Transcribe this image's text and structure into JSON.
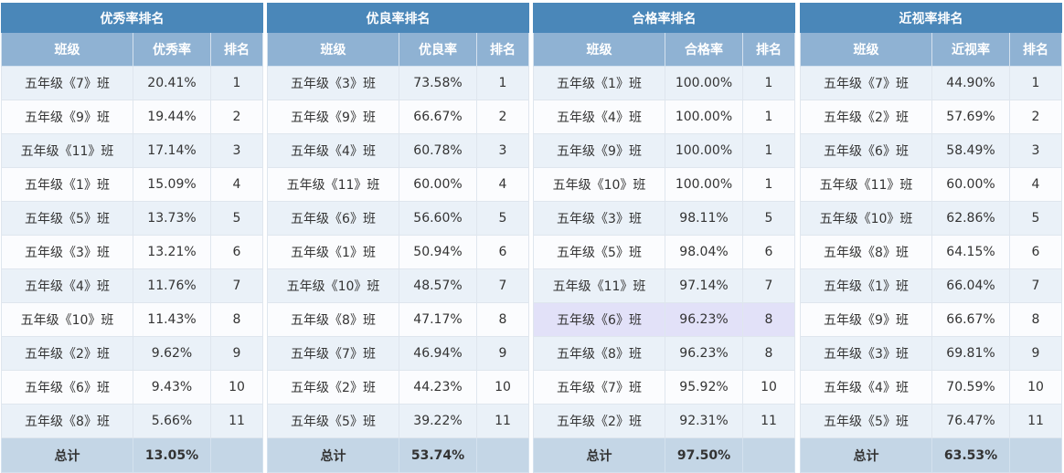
{
  "tables": [
    {
      "title": "优秀率排名",
      "headers": [
        "班级",
        "优秀率",
        "排名"
      ],
      "rows": [
        {
          "cls": "五年级《7》班",
          "rate": "20.41%",
          "rank": "1"
        },
        {
          "cls": "五年级《9》班",
          "rate": "19.44%",
          "rank": "2"
        },
        {
          "cls": "五年级《11》班",
          "rate": "17.14%",
          "rank": "3"
        },
        {
          "cls": "五年级《1》班",
          "rate": "15.09%",
          "rank": "4"
        },
        {
          "cls": "五年级《5》班",
          "rate": "13.73%",
          "rank": "5"
        },
        {
          "cls": "五年级《3》班",
          "rate": "13.21%",
          "rank": "6"
        },
        {
          "cls": "五年级《4》班",
          "rate": "11.76%",
          "rank": "7"
        },
        {
          "cls": "五年级《10》班",
          "rate": "11.43%",
          "rank": "8"
        },
        {
          "cls": "五年级《2》班",
          "rate": "9.62%",
          "rank": "9"
        },
        {
          "cls": "五年级《6》班",
          "rate": "9.43%",
          "rank": "10"
        },
        {
          "cls": "五年级《8》班",
          "rate": "5.66%",
          "rank": "11"
        }
      ],
      "footer": {
        "label": "总计",
        "value": "13.05%"
      }
    },
    {
      "title": "优良率排名",
      "headers": [
        "班级",
        "优良率",
        "排名"
      ],
      "rows": [
        {
          "cls": "五年级《3》班",
          "rate": "73.58%",
          "rank": "1"
        },
        {
          "cls": "五年级《9》班",
          "rate": "66.67%",
          "rank": "2"
        },
        {
          "cls": "五年级《4》班",
          "rate": "60.78%",
          "rank": "3"
        },
        {
          "cls": "五年级《11》班",
          "rate": "60.00%",
          "rank": "4"
        },
        {
          "cls": "五年级《6》班",
          "rate": "56.60%",
          "rank": "5"
        },
        {
          "cls": "五年级《1》班",
          "rate": "50.94%",
          "rank": "6"
        },
        {
          "cls": "五年级《10》班",
          "rate": "48.57%",
          "rank": "7"
        },
        {
          "cls": "五年级《8》班",
          "rate": "47.17%",
          "rank": "8"
        },
        {
          "cls": "五年级《7》班",
          "rate": "46.94%",
          "rank": "9"
        },
        {
          "cls": "五年级《2》班",
          "rate": "44.23%",
          "rank": "10"
        },
        {
          "cls": "五年级《5》班",
          "rate": "39.22%",
          "rank": "11"
        }
      ],
      "footer": {
        "label": "总计",
        "value": "53.74%"
      }
    },
    {
      "title": "合格率排名",
      "headers": [
        "班级",
        "合格率",
        "排名"
      ],
      "rows": [
        {
          "cls": "五年级《1》班",
          "rate": "100.00%",
          "rank": "1"
        },
        {
          "cls": "五年级《4》班",
          "rate": "100.00%",
          "rank": "1"
        },
        {
          "cls": "五年级《9》班",
          "rate": "100.00%",
          "rank": "1"
        },
        {
          "cls": "五年级《10》班",
          "rate": "100.00%",
          "rank": "1"
        },
        {
          "cls": "五年级《3》班",
          "rate": "98.11%",
          "rank": "5"
        },
        {
          "cls": "五年级《5》班",
          "rate": "98.04%",
          "rank": "6"
        },
        {
          "cls": "五年级《11》班",
          "rate": "97.14%",
          "rank": "7"
        },
        {
          "cls": "五年级《6》班",
          "rate": "96.23%",
          "rank": "8",
          "highlight": true
        },
        {
          "cls": "五年级《8》班",
          "rate": "96.23%",
          "rank": "8"
        },
        {
          "cls": "五年级《7》班",
          "rate": "95.92%",
          "rank": "10"
        },
        {
          "cls": "五年级《2》班",
          "rate": "92.31%",
          "rank": "11"
        }
      ],
      "footer": {
        "label": "总计",
        "value": "97.50%"
      }
    },
    {
      "title": "近视率排名",
      "headers": [
        "班级",
        "近视率",
        "排名"
      ],
      "rows": [
        {
          "cls": "五年级《7》班",
          "rate": "44.90%",
          "rank": "1"
        },
        {
          "cls": "五年级《2》班",
          "rate": "57.69%",
          "rank": "2"
        },
        {
          "cls": "五年级《6》班",
          "rate": "58.49%",
          "rank": "3"
        },
        {
          "cls": "五年级《11》班",
          "rate": "60.00%",
          "rank": "4"
        },
        {
          "cls": "五年级《10》班",
          "rate": "62.86%",
          "rank": "5"
        },
        {
          "cls": "五年级《8》班",
          "rate": "64.15%",
          "rank": "6"
        },
        {
          "cls": "五年级《1》班",
          "rate": "66.04%",
          "rank": "7"
        },
        {
          "cls": "五年级《9》班",
          "rate": "66.67%",
          "rank": "8"
        },
        {
          "cls": "五年级《3》班",
          "rate": "69.81%",
          "rank": "9"
        },
        {
          "cls": "五年级《4》班",
          "rate": "70.59%",
          "rank": "10"
        },
        {
          "cls": "五年级《5》班",
          "rate": "76.47%",
          "rank": "11"
        }
      ],
      "footer": {
        "label": "总计",
        "value": "63.53%"
      }
    }
  ],
  "colors": {
    "title_bg": "#4a87b9",
    "header_bg": "#8fb2d3",
    "row_alt": "#eaf1f8",
    "row_base": "#fbfcfe",
    "highlight": "#e2e1f8",
    "footer_bg": "#c4d6e6"
  }
}
